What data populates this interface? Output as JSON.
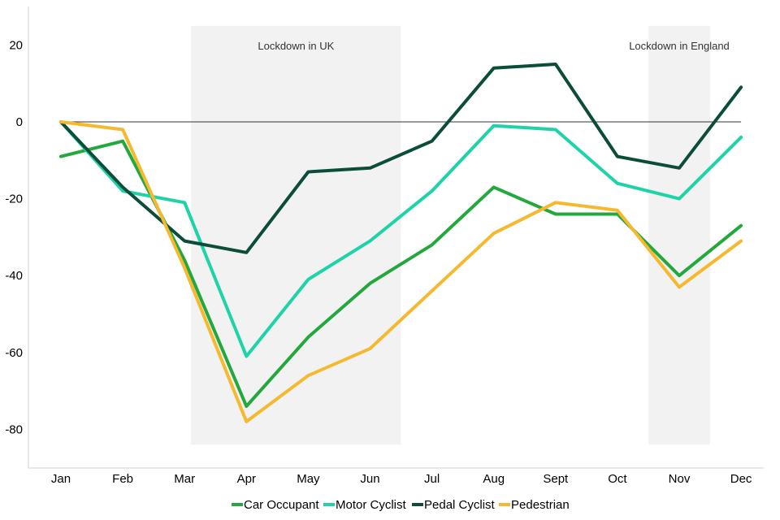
{
  "chart_data": {
    "type": "line",
    "title": "",
    "xlabel": "",
    "ylabel": "",
    "categories": [
      "Jan",
      "Feb",
      "Mar",
      "Apr",
      "May",
      "Jun",
      "Jul",
      "Aug",
      "Sept",
      "Oct",
      "Nov",
      "Dec"
    ],
    "y_ticks": [
      20,
      0,
      -20,
      -40,
      -60,
      -80
    ],
    "ylim": [
      -90,
      30
    ],
    "legend_position": "bottom",
    "grid": false,
    "series": [
      {
        "name": "Car Occupant",
        "color": "#22a83c",
        "values": [
          -9,
          -5,
          -36,
          -74,
          -56,
          -42,
          -32,
          -17,
          -24,
          -24,
          -40,
          -27
        ]
      },
      {
        "name": "Motor Cyclist",
        "color": "#1dd3a7",
        "values": [
          0,
          -18,
          -21,
          -61,
          -41,
          -31,
          -18,
          -1,
          -2,
          -16,
          -20,
          -4
        ]
      },
      {
        "name": "Pedal Cyclist",
        "color": "#0b4d3a",
        "values": [
          0,
          -17,
          -31,
          -34,
          -13,
          -12,
          -5,
          14,
          15,
          -9,
          -12,
          9
        ]
      },
      {
        "name": "Pedestrian",
        "color": "#f5b82e",
        "values": [
          0,
          -2,
          -38,
          -78,
          -66,
          -59,
          -44,
          -29,
          -21,
          -23,
          -43,
          -31
        ]
      }
    ],
    "annotations": [
      {
        "label": "Lockdown in UK",
        "from_category": "Mar",
        "to_category": "Jun"
      },
      {
        "label": "Lockdown in England",
        "from_category": "Nov",
        "to_category": "Nov"
      }
    ],
    "shade_color": "#f2f2f2"
  }
}
